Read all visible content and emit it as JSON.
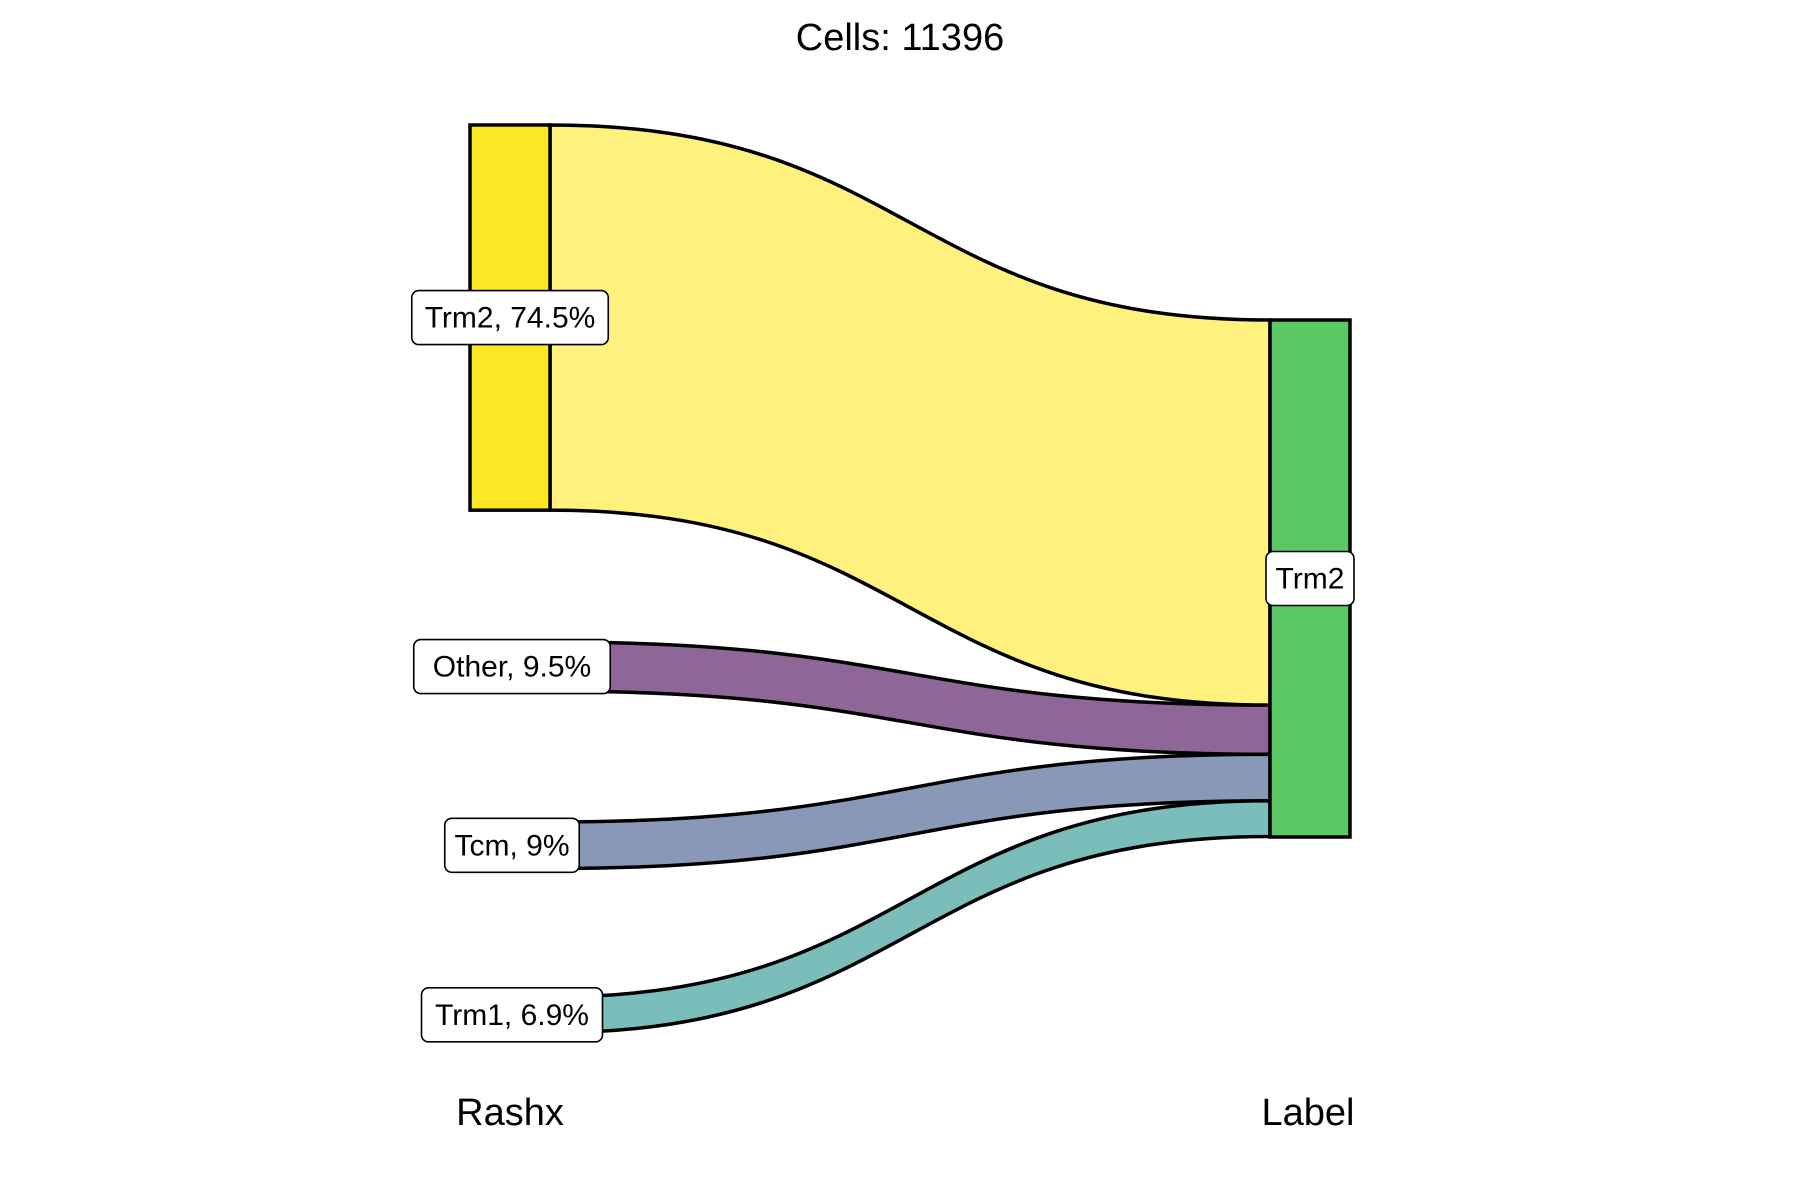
{
  "chart_data": {
    "type": "sankey",
    "title": "Cells:  11396",
    "axes": [
      "Rashx",
      "Label"
    ],
    "source_nodes": [
      {
        "name": "Trm2",
        "label": "Trm2, 74.5%",
        "percent": 74.5,
        "color": "#FDE725"
      },
      {
        "name": "Other",
        "label": "Other, 9.5%",
        "percent": 9.5,
        "color": "#8E6698"
      },
      {
        "name": "Tcm",
        "label": "Tcm, 9%",
        "percent": 9.0,
        "color": "#8A98B8"
      },
      {
        "name": "Trm1",
        "label": "Trm1, 6.9%",
        "percent": 6.9,
        "color": "#7ABDBA"
      }
    ],
    "target_nodes": [
      {
        "name": "Trm2",
        "label": "Trm2",
        "percent": 100,
        "color": "#5CC863"
      }
    ],
    "flows": [
      {
        "source": "Trm2",
        "target": "Trm2",
        "percent": 74.5,
        "color": "#FEF17E"
      },
      {
        "source": "Other",
        "target": "Trm2",
        "percent": 9.5,
        "color": "#8E6698"
      },
      {
        "source": "Tcm",
        "target": "Trm2",
        "percent": 9.0,
        "color": "#8A98B8"
      },
      {
        "source": "Trm1",
        "target": "Trm2",
        "percent": 6.9,
        "color": "#7ABDBA"
      }
    ]
  }
}
